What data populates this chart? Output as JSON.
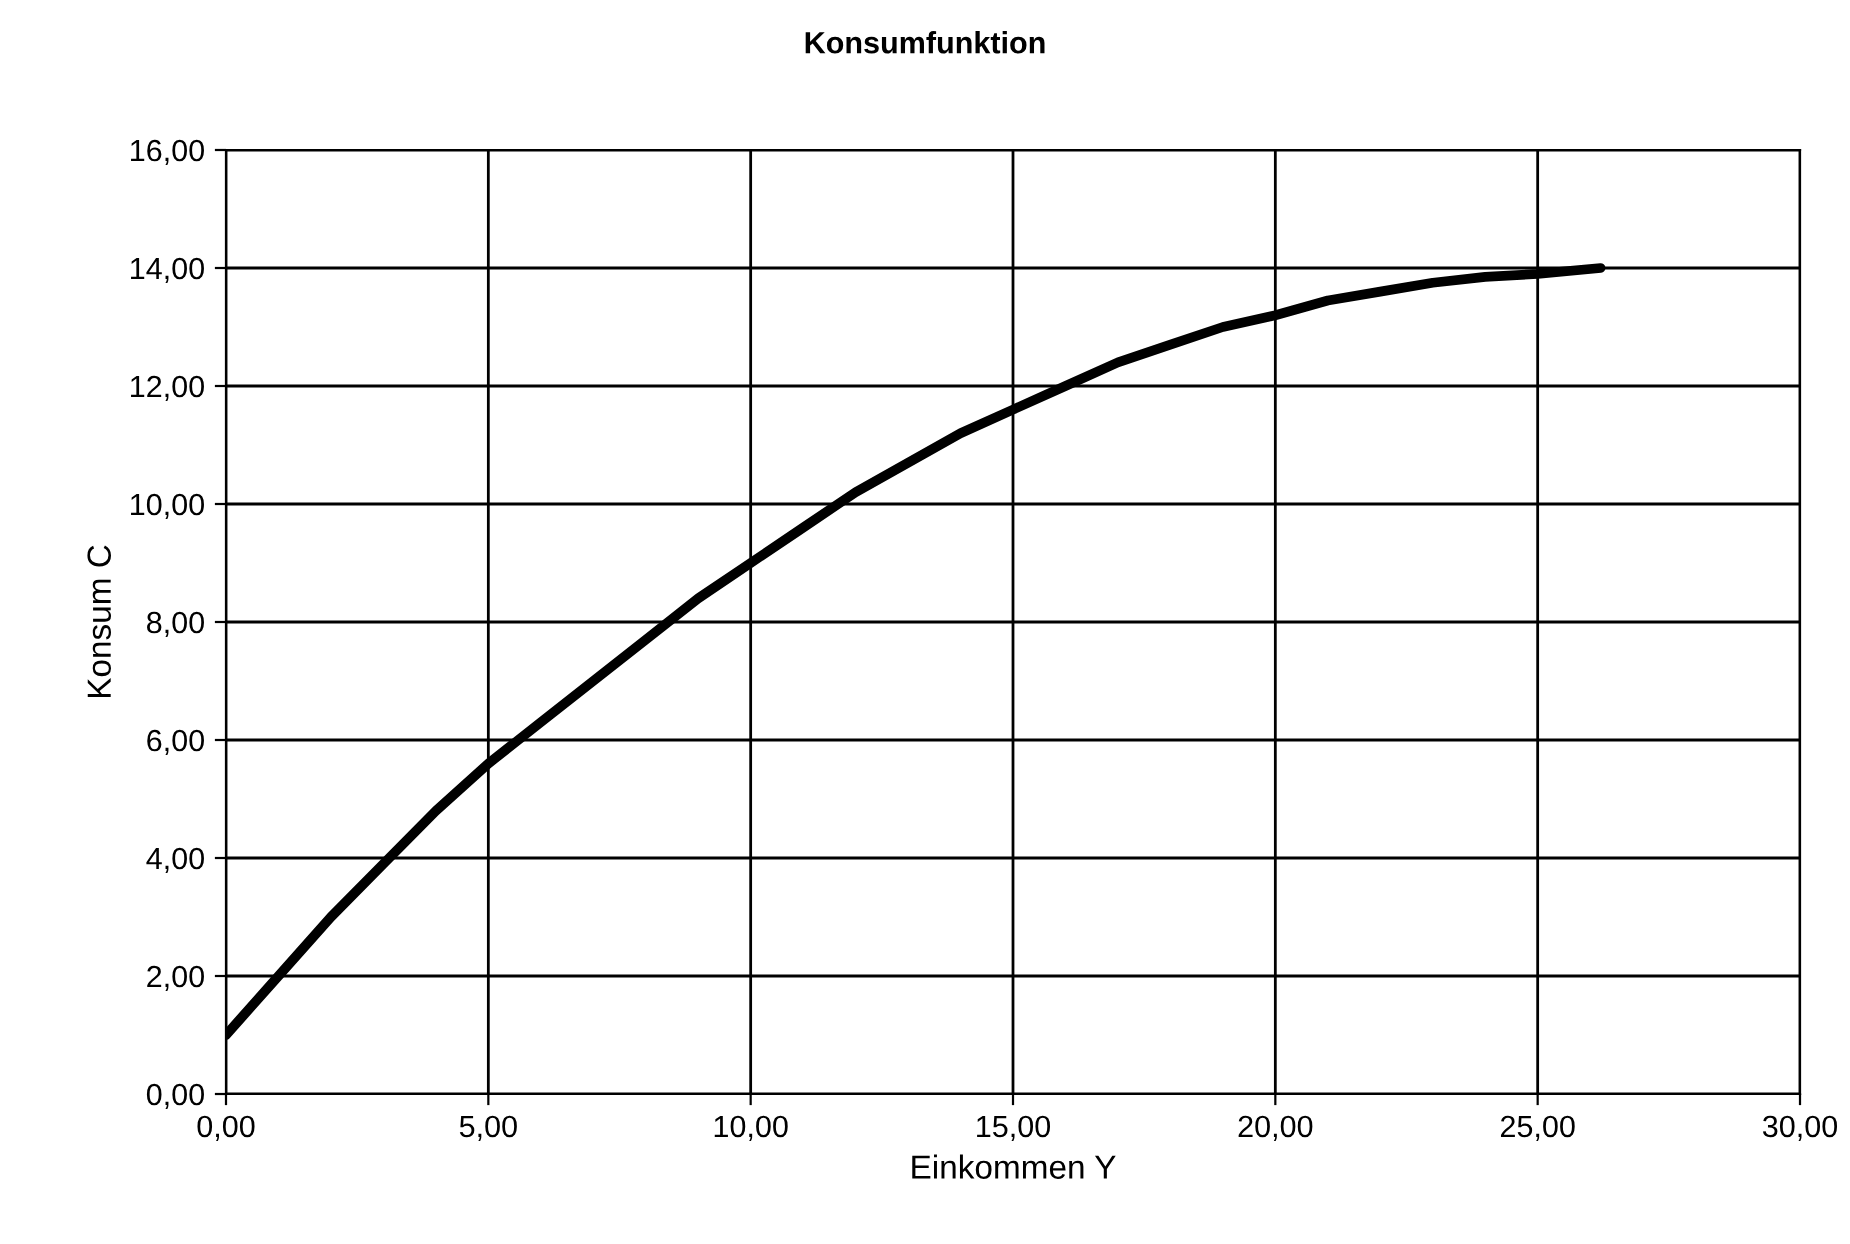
{
  "chart_data": {
    "type": "line",
    "title": "Konsumfunktion",
    "xlabel": "Einkommen Y",
    "ylabel": "Konsum C",
    "x": [
      0,
      1,
      2,
      3,
      4,
      5,
      6,
      7,
      8,
      9,
      10,
      11,
      12,
      13,
      14,
      15,
      16,
      17,
      18,
      19,
      20,
      21,
      22,
      23,
      24,
      25,
      26.2
    ],
    "series": [
      {
        "color": "#000000",
        "values": [
          1.0,
          2.0,
          3.0,
          3.9,
          4.8,
          5.6,
          6.3,
          7.0,
          7.7,
          8.4,
          9.0,
          9.6,
          10.2,
          10.7,
          11.2,
          11.6,
          12.0,
          12.4,
          12.7,
          13.0,
          13.2,
          13.45,
          13.6,
          13.75,
          13.85,
          13.9,
          14.0
        ]
      }
    ],
    "xlim": [
      0,
      30
    ],
    "ylim": [
      0,
      16
    ],
    "xticks": [
      {
        "value": 0,
        "label": "0,00"
      },
      {
        "value": 5,
        "label": "5,00"
      },
      {
        "value": 10,
        "label": "10,00"
      },
      {
        "value": 15,
        "label": "15,00"
      },
      {
        "value": 20,
        "label": "20,00"
      },
      {
        "value": 25,
        "label": "25,00"
      },
      {
        "value": 30,
        "label": "30,00"
      }
    ],
    "yticks": [
      {
        "value": 0,
        "label": "0,00"
      },
      {
        "value": 2,
        "label": "2,00"
      },
      {
        "value": 4,
        "label": "4,00"
      },
      {
        "value": 6,
        "label": "6,00"
      },
      {
        "value": 8,
        "label": "8,00"
      },
      {
        "value": 10,
        "label": "10,00"
      },
      {
        "value": 12,
        "label": "12,00"
      },
      {
        "value": 14,
        "label": "14,00"
      },
      {
        "value": 16,
        "label": "16,00"
      }
    ],
    "grid": true,
    "legend": false,
    "marker": "none",
    "line_style": "solid"
  }
}
